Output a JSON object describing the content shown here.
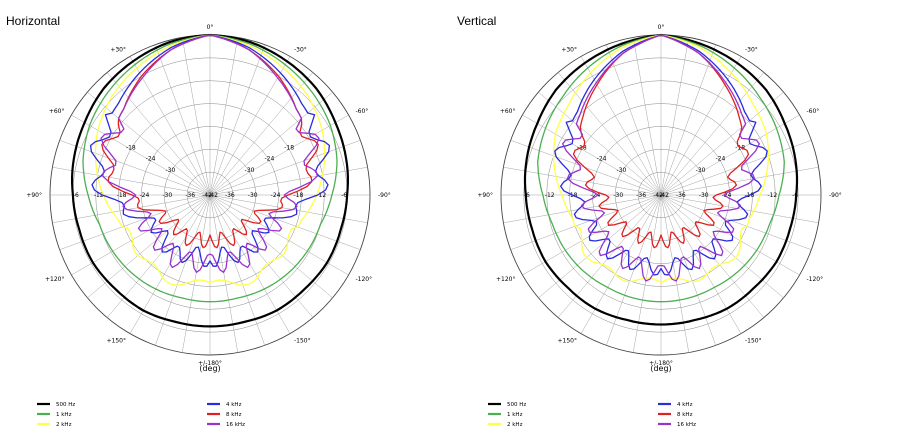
{
  "chart_data": [
    {
      "type": "polar-line",
      "title": "Horizontal",
      "xlabel": "(deg)",
      "radial_unit": "dB",
      "radial_range": [
        -42,
        0
      ],
      "radial_ticks": [
        "-6",
        "-12",
        "-18",
        "-24",
        "-30",
        "-36",
        "-42"
      ],
      "angle_labels": [
        "0°",
        "-30°",
        "-60°",
        "-90°",
        "-120°",
        "-150°",
        "+/-180°",
        "+150°",
        "+120°",
        "+90°",
        "+60°",
        "+30°"
      ],
      "grid": true,
      "legend_position": "bottom",
      "angles_deg": [
        0,
        15,
        30,
        45,
        60,
        75,
        90,
        105,
        120,
        135,
        150,
        165,
        180
      ],
      "series": [
        {
          "name": "500 Hz",
          "color": "#000000",
          "db": [
            0,
            -0.5,
            -1.5,
            -2.5,
            -4,
            -5,
            -6,
            -6.5,
            -6.5,
            -7,
            -7,
            -7.5,
            -7.5
          ]
        },
        {
          "name": "1 kHz",
          "color": "#4caf50",
          "db": [
            0,
            -1,
            -2.5,
            -4,
            -5.5,
            -7.5,
            -10,
            -12,
            -12.5,
            -13,
            -13.5,
            -14,
            -14
          ]
        },
        {
          "name": "2 kHz",
          "color": "#ffff44",
          "db": [
            0,
            -1.5,
            -3.5,
            -5.5,
            -8,
            -11,
            -14,
            -17,
            -18.5,
            -18,
            -17,
            -18,
            -19
          ]
        },
        {
          "name": "4 kHz",
          "color": "#2a2adf",
          "db": [
            0,
            -2,
            -5,
            -8,
            -9.5,
            -11,
            -14,
            -22,
            -26,
            -25,
            -24,
            -26,
            -25
          ]
        },
        {
          "name": "8 kHz",
          "color": "#e02020",
          "db": [
            0,
            -2.5,
            -6,
            -10,
            -12,
            -14,
            -20,
            -27,
            -29,
            -30,
            -29,
            -30,
            -30
          ]
        },
        {
          "name": "16 kHz",
          "color": "#9933cc",
          "db": [
            0,
            -2.5,
            -6.5,
            -10,
            -12,
            -14,
            -20,
            -23,
            -24,
            -24,
            -23,
            -24,
            -24
          ]
        }
      ]
    },
    {
      "type": "polar-line",
      "title": "Vertical",
      "xlabel": "(deg)",
      "radial_unit": "dB",
      "radial_range": [
        -42,
        0
      ],
      "radial_ticks": [
        "-6",
        "-12",
        "-18",
        "-24",
        "-30",
        "-36",
        "-42"
      ],
      "angle_labels": [
        "0°",
        "-30°",
        "-60°",
        "-90°",
        "-120°",
        "-150°",
        "+/-180°",
        "+150°",
        "+120°",
        "+90°",
        "+60°",
        "+30°"
      ],
      "grid": true,
      "legend_position": "bottom",
      "angles_deg": [
        0,
        15,
        30,
        45,
        60,
        75,
        90,
        105,
        120,
        135,
        150,
        165,
        180
      ],
      "series": [
        {
          "name": "500 Hz",
          "color": "#000000",
          "db": [
            0,
            -1,
            -2,
            -3,
            -4.5,
            -5.5,
            -6.5,
            -7,
            -7,
            -7.5,
            -7.5,
            -8,
            -8
          ]
        },
        {
          "name": "1 kHz",
          "color": "#4caf50",
          "db": [
            0,
            -1.5,
            -3.5,
            -5.5,
            -7,
            -8.5,
            -11,
            -12.5,
            -13,
            -13.5,
            -14,
            -14,
            -14
          ]
        },
        {
          "name": "2 kHz",
          "color": "#ffff44",
          "db": [
            0,
            -2,
            -5,
            -8,
            -10,
            -13,
            -16,
            -18,
            -18,
            -17,
            -18,
            -19,
            -19
          ]
        },
        {
          "name": "4 kHz",
          "color": "#2a2adf",
          "db": [
            0,
            -3,
            -7,
            -11,
            -13,
            -15,
            -19,
            -21,
            -22,
            -22,
            -23,
            -23,
            -23
          ]
        },
        {
          "name": "8 kHz",
          "color": "#e02020",
          "db": [
            0,
            -3.5,
            -8.5,
            -13,
            -17,
            -22,
            -26,
            -28,
            -28,
            -29,
            -30,
            -30,
            -30
          ]
        },
        {
          "name": "16 kHz",
          "color": "#9933cc",
          "db": [
            0,
            -3.5,
            -8,
            -12,
            -15,
            -18,
            -23,
            -24,
            -23,
            -22,
            -23,
            -22,
            -21
          ]
        }
      ]
    }
  ]
}
